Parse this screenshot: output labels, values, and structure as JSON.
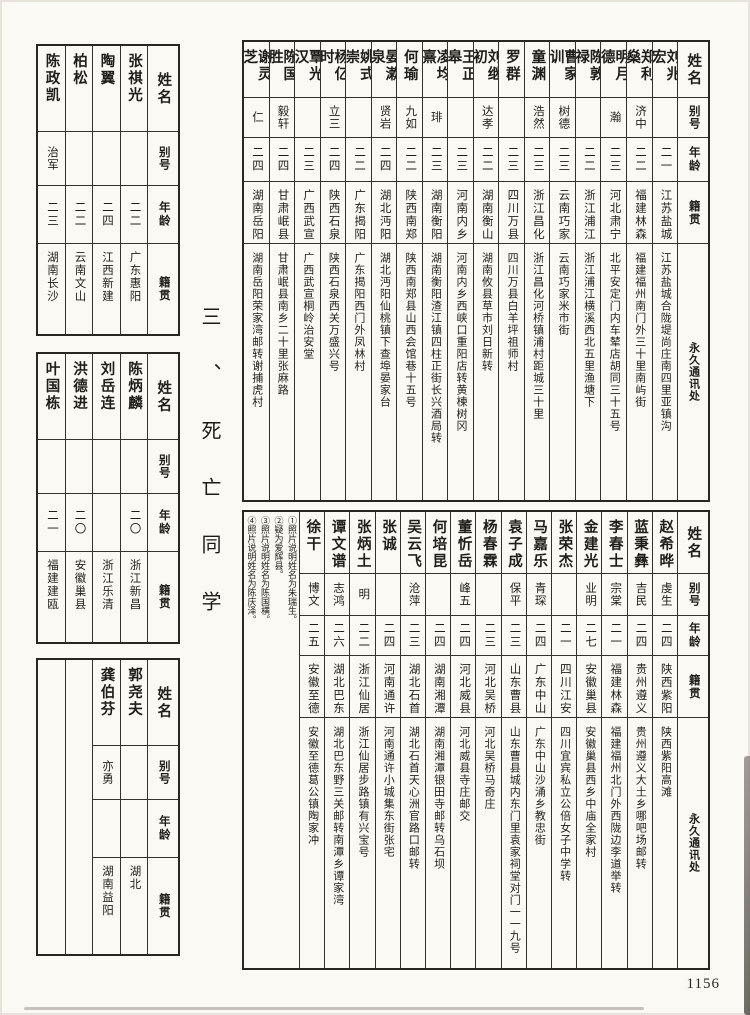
{
  "page": {
    "section_title": "三、死亡同学",
    "page_number": "1156",
    "paper_color": "#fbf9f3",
    "ink_color": "#201e1a"
  },
  "headers": {
    "name": "姓名",
    "alias": "别号",
    "age": "年龄",
    "origin": "籍贯",
    "address": "永久通讯处"
  },
  "left_tables": [
    {
      "columns": [
        {
          "name": "陈政凯",
          "alias": "治军",
          "age": "二三",
          "origin": "湖南长沙"
        },
        {
          "name": "柏松",
          "alias": "",
          "age": "二二",
          "origin": "云南文山"
        },
        {
          "name": "陶翼",
          "alias": "",
          "age": "二四",
          "origin": "江西新建"
        },
        {
          "name": "张祺光",
          "alias": "",
          "age": "二二",
          "origin": "广东惠阳"
        }
      ]
    },
    {
      "columns": [
        {
          "name": "叶国栋",
          "alias": "",
          "age": "二一",
          "origin": "福建建瓯"
        },
        {
          "name": "洪德进",
          "alias": "",
          "age": "二〇",
          "origin": "安徽巢县"
        },
        {
          "name": "刘岳连",
          "alias": "",
          "age": "",
          "origin": "浙江乐清"
        },
        {
          "name": "陈炳麟",
          "alias": "",
          "age": "二〇",
          "origin": "浙江新昌"
        }
      ]
    },
    {
      "columns": [
        {
          "empty": true
        },
        {
          "empty": true
        },
        {
          "name": "龚伯芬",
          "alias": "亦勇",
          "age": "",
          "origin": "湖南益阳"
        },
        {
          "name": "郭尧夫",
          "alias": "",
          "age": "",
          "origin": "湖北"
        }
      ]
    }
  ],
  "top_table": {
    "columns": [
      {
        "name": "谢灵芝",
        "alias": "仁",
        "age": "二四",
        "origin": "湖南岳阳",
        "address": "湖南岳阳荣家湾邮转谢捕虎村"
      },
      {
        "name": "陈国胜",
        "alias": "毅轩",
        "age": "二四",
        "origin": "甘肃岷县",
        "address": "甘肃岷县南乡二十里张麻路"
      },
      {
        "name": "覃光汉",
        "alias": "",
        "age": "二三",
        "origin": "广西武宣",
        "address": "广西武宣桐岭治安堂"
      },
      {
        "name": "杨亿时",
        "alias": "立三",
        "age": "二四",
        "origin": "陕西石泉",
        "address": "陕西石泉西关万盛兴号"
      },
      {
        "name": "姚式崇",
        "alias": "",
        "age": "二二",
        "origin": "广东揭阳",
        "address": "广东揭阳西门外凤林村"
      },
      {
        "name": "晏漱泉",
        "alias": "贤岩",
        "age": "二四",
        "origin": "湖北沔阳",
        "address": "湖北沔阳仙桃镇下查埠晏家台"
      },
      {
        "name": "何瑜",
        "alias": "九如",
        "age": "二二",
        "origin": "陕西南郑",
        "address": "陕西南郑县山西会馆巷十五号"
      },
      {
        "name": "凌均熹",
        "alias": "琲",
        "age": "二三",
        "origin": "湖南衡阳",
        "address": "湖南衡阳渣江镇四柱正街长兴酒局转"
      },
      {
        "name": "王正皋",
        "alias": "",
        "age": "二三",
        "origin": "河南内乡",
        "address": "河南内乡西峡口重阳店转黄楝树冈"
      },
      {
        "name": "刘继初",
        "alias": "达孝",
        "age": "二二",
        "origin": "湖南衡山",
        "address": "湖南攸县草市刘日新转"
      },
      {
        "name": "罗群",
        "alias": "",
        "age": "二三",
        "origin": "四川万县",
        "address": "四川万县白羊坪祖师村"
      },
      {
        "name": "童渊",
        "alias": "浩然",
        "age": "二三",
        "origin": "浙江昌化",
        "address": "浙江昌化河桥镇浦村距城三十里"
      },
      {
        "name": "曹家训",
        "alias": "树德",
        "age": "二三",
        "origin": "云南巧家",
        "address": "云南巧家米市街"
      },
      {
        "name": "陈敦禄",
        "alias": "",
        "age": "二二",
        "origin": "浙江浦江",
        "address": "浙江浦江横溪西北五里渔塘下"
      },
      {
        "name": "明月德",
        "alias": "瀚",
        "age": "二三",
        "origin": "河北肃宁",
        "address": "北平安定门内车辇店胡同三十五号"
      },
      {
        "name": "郑利燊",
        "alias": "济中",
        "age": "二二",
        "origin": "福建林森",
        "address": "福建福州南门外三十里南屿街"
      },
      {
        "name": "刘兆宏",
        "alias": "",
        "age": "二一",
        "origin": "江苏盐城",
        "address": "江苏盐城合陇堤尚庄南四里亚镇沟"
      }
    ]
  },
  "bottom_table": {
    "notes": [
      "①照片说明姓名为朱瑞生。",
      "②疑为爱辉县。",
      "③照片说明姓名为陈国横。",
      "④照片说明姓名为陈庆泽。"
    ],
    "columns": [
      {
        "name": "徐干",
        "alias": "博文",
        "age": "二五",
        "origin": "安徽至德",
        "address": "安徽至德葛公镇陶家冲"
      },
      {
        "name": "谭文谱",
        "alias": "志鸿",
        "age": "二六",
        "origin": "湖北巴东",
        "address": "湖北巴东野三关邮转南潭乡谭家湾"
      },
      {
        "name": "张炳土",
        "alias": "明",
        "age": "二二",
        "origin": "浙江仙居",
        "address": "浙江仙居步路镇有兴宝号"
      },
      {
        "name": "张诚",
        "alias": "",
        "age": "二四",
        "origin": "河南通许",
        "address": "河南通许小城集东街张宅"
      },
      {
        "name": "吴云飞",
        "alias": "沧萍",
        "age": "二三",
        "origin": "湖北石首",
        "address": "湖北石首天心洲官路口邮转"
      },
      {
        "name": "何培昆",
        "alias": "",
        "age": "二四",
        "origin": "湖南湘潭",
        "address": "湖南湘潭银田寺邮转乌石坝"
      },
      {
        "name": "董忻岳",
        "alias": "峰五",
        "age": "二四",
        "origin": "河北威县",
        "address": "河北威县寺庄邮交"
      },
      {
        "name": "杨春霖",
        "alias": "",
        "age": "二三",
        "origin": "河北吴桥",
        "address": "河北吴桥马奇庄"
      },
      {
        "name": "袁子成",
        "alias": "保平",
        "age": "二三",
        "origin": "山东曹县",
        "address": "山东曹县城内东门里袁家祠堂对门一一九号"
      },
      {
        "name": "马嘉乐",
        "alias": "青琛",
        "age": "二四",
        "origin": "广东中山",
        "address": "广东中山沙涌乡教忠街"
      },
      {
        "name": "张荣杰",
        "alias": "",
        "age": "二一",
        "origin": "四川江安",
        "address": "四川宜宾私立公倍女子中学转"
      },
      {
        "name": "金建光",
        "alias": "业明",
        "age": "二七",
        "origin": "安徽巢县",
        "address": "安徽巢县西乡中庙全家村"
      },
      {
        "name": "李春士",
        "alias": "宗棠",
        "age": "二一",
        "origin": "福建林森",
        "address": "福建福州北门外西陇边李道举转"
      },
      {
        "name": "蓝秉彝",
        "alias": "吉民",
        "age": "二四",
        "origin": "贵州遵义",
        "address": "贵州遵义大土乡哪吧场邮转"
      },
      {
        "name": "赵希晔",
        "alias": "虔生",
        "age": "二四",
        "origin": "陕西紫阳",
        "address": "陕西紫阳高滩"
      }
    ]
  }
}
